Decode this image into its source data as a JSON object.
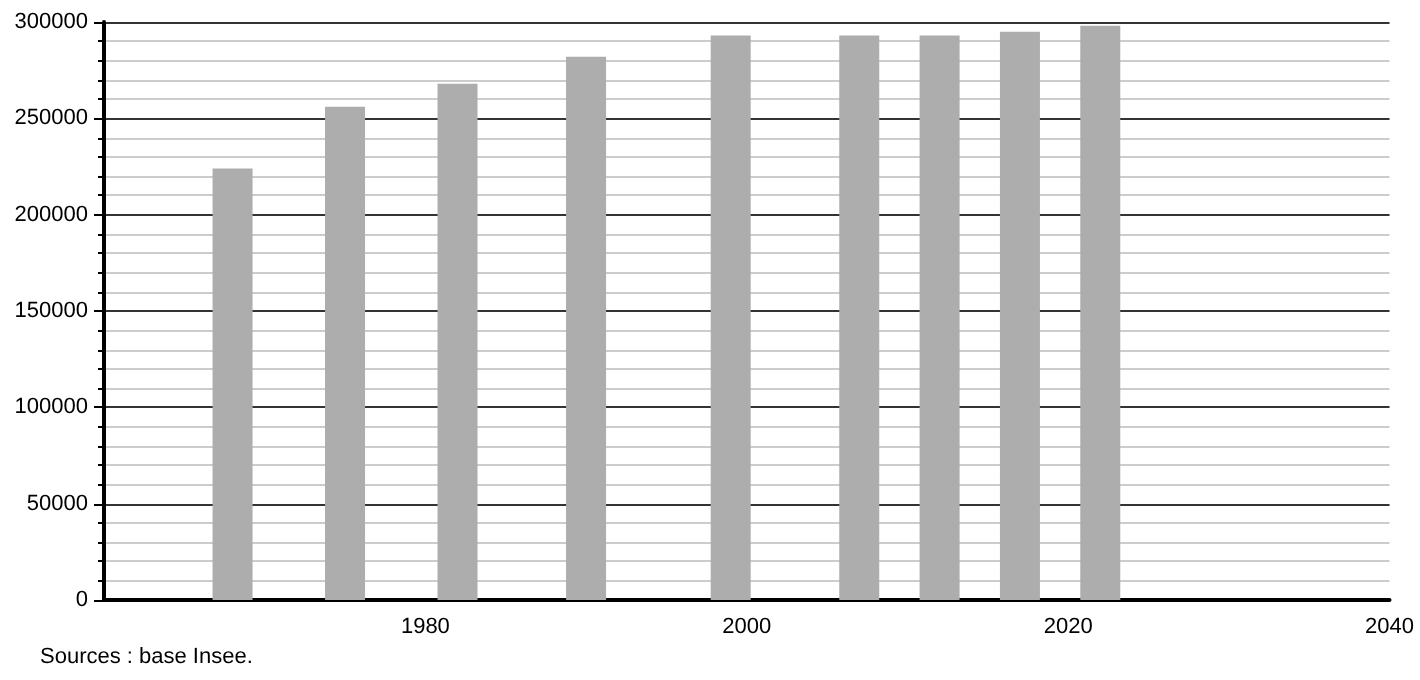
{
  "chart_data": {
    "type": "bar",
    "x": [
      1968,
      1975,
      1982,
      1990,
      1999,
      2007,
      2012,
      2017,
      2022
    ],
    "values": [
      224000,
      256000,
      268000,
      282000,
      293000,
      293000,
      293000,
      295000,
      298000
    ],
    "color": "#adadad",
    "xlim": [
      1960,
      2040
    ],
    "xticks": [
      1980,
      2000,
      2020,
      2040
    ],
    "ylim": [
      0,
      300000
    ],
    "yticks": [
      0,
      50000,
      100000,
      150000,
      200000,
      250000,
      300000
    ],
    "grid": "y",
    "annotations": [
      "Sources : base Insee."
    ]
  }
}
